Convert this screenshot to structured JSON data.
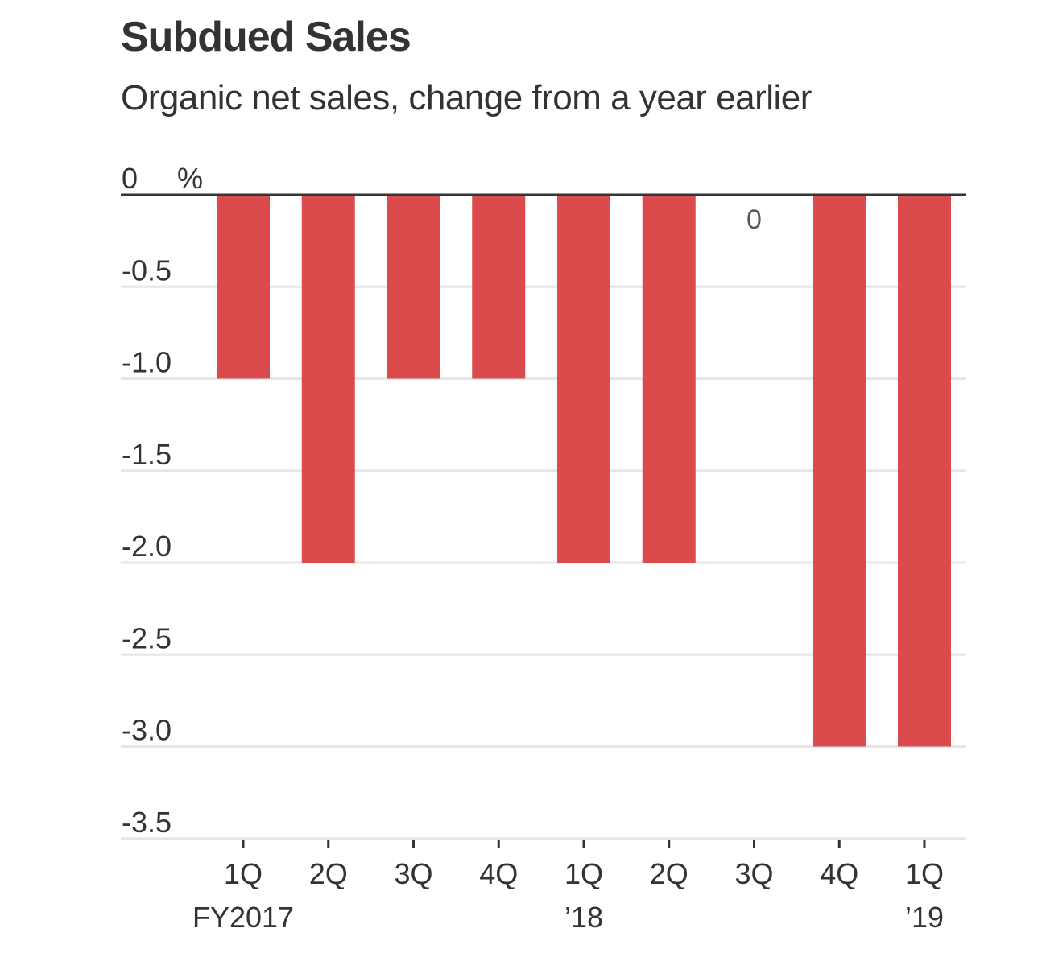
{
  "chart_data": {
    "type": "bar",
    "title": "Subdued Sales",
    "subtitle": "Organic net sales, change from a year earlier",
    "xlabel": "",
    "ylabel": "%",
    "unit_label": "%",
    "categories": [
      "1Q",
      "2Q",
      "3Q",
      "4Q",
      "1Q",
      "2Q",
      "3Q",
      "4Q",
      "1Q"
    ],
    "category_sublabels": [
      "FY2017",
      "",
      "",
      "",
      "’18",
      "",
      "",
      "",
      "’19"
    ],
    "values": [
      -1.0,
      -2.0,
      -1.0,
      -1.0,
      -2.0,
      -2.0,
      0,
      -3.0,
      -3.0
    ],
    "annotations": [
      {
        "category_index": 6,
        "text": "0"
      }
    ],
    "ylim": [
      -3.5,
      0
    ],
    "yticks": [
      0,
      -0.5,
      -1.0,
      -1.5,
      -2.0,
      -2.5,
      -3.0,
      -3.5
    ],
    "ytick_labels": [
      "0",
      "-0.5",
      "-1.0",
      "-1.5",
      "-2.0",
      "-2.5",
      "-3.0",
      "-3.5"
    ],
    "grid": true,
    "colors": {
      "bar": "#dc4b4c",
      "zero_line": "#333333",
      "grid": "#e6e6e6",
      "text": "#333333"
    }
  }
}
